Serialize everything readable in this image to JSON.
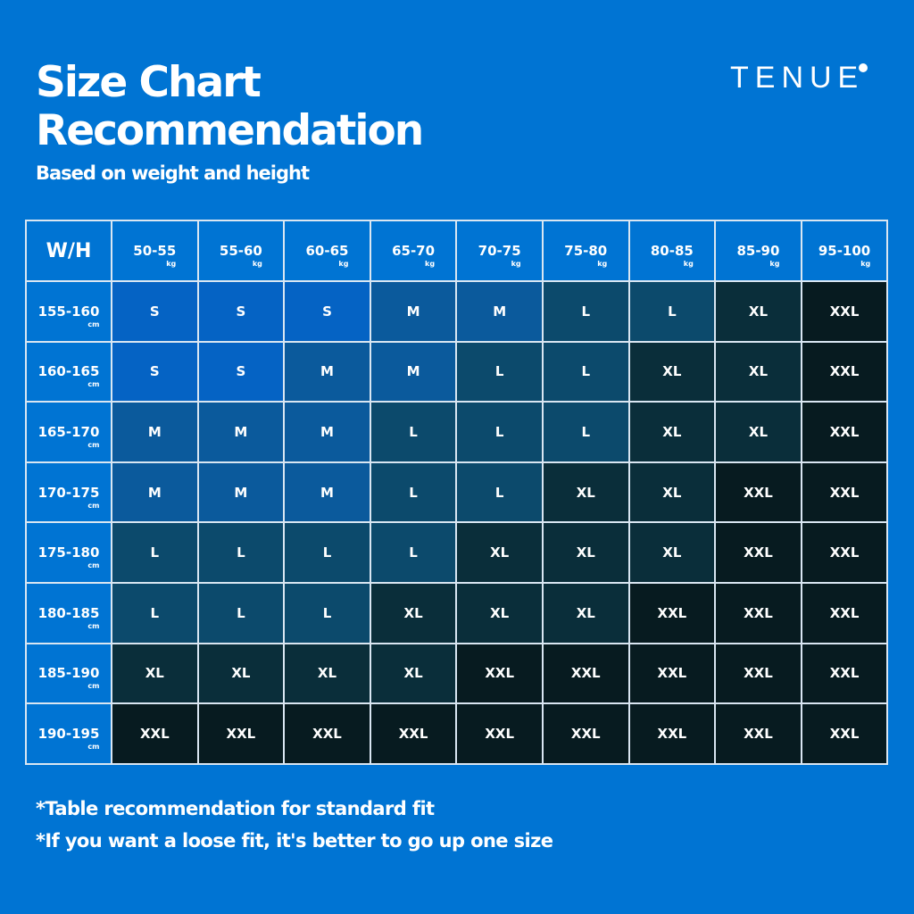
{
  "header": {
    "title_line1": "Size Chart",
    "title_line2": "Recommendation",
    "subtitle": "Based on weight and height",
    "brand": "TENUE"
  },
  "table": {
    "corner": "W/H",
    "weight_unit": "kg",
    "height_unit": "cm",
    "weights": [
      "50-55",
      "55-60",
      "60-65",
      "65-70",
      "70-75",
      "75-80",
      "80-85",
      "85-90",
      "95-100"
    ],
    "heights": [
      "155-160",
      "160-165",
      "165-170",
      "170-175",
      "175-180",
      "180-185",
      "185-190",
      "190-195"
    ],
    "rows": [
      [
        "S",
        "S",
        "S",
        "M",
        "M",
        "L",
        "L",
        "XL",
        "XXL"
      ],
      [
        "S",
        "S",
        "M",
        "M",
        "L",
        "L",
        "XL",
        "XL",
        "XXL"
      ],
      [
        "M",
        "M",
        "M",
        "L",
        "L",
        "L",
        "XL",
        "XL",
        "XXL"
      ],
      [
        "M",
        "M",
        "M",
        "L",
        "L",
        "XL",
        "XL",
        "XXL",
        "XXL"
      ],
      [
        "L",
        "L",
        "L",
        "L",
        "XL",
        "XL",
        "XL",
        "XXL",
        "XXL"
      ],
      [
        "L",
        "L",
        "L",
        "XL",
        "XL",
        "XL",
        "XXL",
        "XXL",
        "XXL"
      ],
      [
        "XL",
        "XL",
        "XL",
        "XL",
        "XXL",
        "XXL",
        "XXL",
        "XXL",
        "XXL"
      ],
      [
        "XXL",
        "XXL",
        "XXL",
        "XXL",
        "XXL",
        "XXL",
        "XXL",
        "XXL",
        "XXL"
      ]
    ],
    "size_colors": {
      "S": "#0563c4",
      "M": "#0b5a9c",
      "L": "#0c4a6c",
      "XL": "#0a2e3a",
      "XXL": "#071b20"
    }
  },
  "notes": [
    "*Table recommendation for standard fit",
    "*If you want a loose fit, it's better to go up one size"
  ],
  "colors": {
    "background": "#0074d3",
    "grid": "#d9e6f2"
  }
}
